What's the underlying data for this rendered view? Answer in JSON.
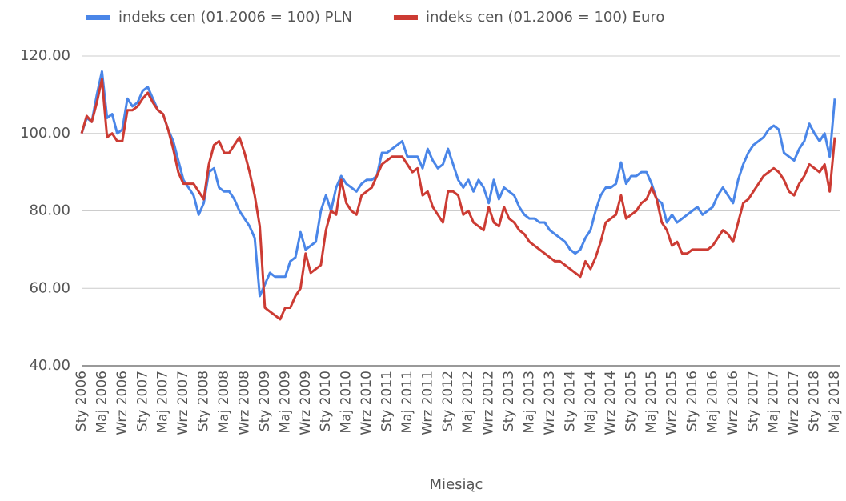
{
  "chart_data": {
    "type": "line",
    "x_label": "Miesiąc",
    "categories": [
      "Sty 2006",
      null,
      null,
      null,
      "Maj 2006",
      null,
      null,
      null,
      "Wrz 2006",
      null,
      null,
      null,
      "Sty 2007",
      null,
      null,
      null,
      "Maj 2007",
      null,
      null,
      null,
      "Wrz 2007",
      null,
      null,
      null,
      "Sty 2008",
      null,
      null,
      null,
      "Maj 2008",
      null,
      null,
      null,
      "Wrz 2008",
      null,
      null,
      null,
      "Sty 2009",
      null,
      null,
      null,
      "Maj 2009",
      null,
      null,
      null,
      "Wrz 2009",
      null,
      null,
      null,
      "Sty 2010",
      null,
      null,
      null,
      "Maj 2010",
      null,
      null,
      null,
      "Wrz 2010",
      null,
      null,
      null,
      "Sty 2011",
      null,
      null,
      null,
      "Maj 2011",
      null,
      null,
      null,
      "Wrz 2011",
      null,
      null,
      null,
      "Sty 2012",
      null,
      null,
      null,
      "Maj 2012",
      null,
      null,
      null,
      "Wrz 2012",
      null,
      null,
      null,
      "Sty 2013",
      null,
      null,
      null,
      "Maj 2013",
      null,
      null,
      null,
      "Wrz 2013",
      null,
      null,
      null,
      "Sty 2014",
      null,
      null,
      null,
      "Maj 2014",
      null,
      null,
      null,
      "Wrz 2014",
      null,
      null,
      null,
      "Sty 2015",
      null,
      null,
      null,
      "Maj 2015",
      null,
      null,
      null,
      "Wrz 2015",
      null,
      null,
      null,
      "Sty 2016",
      null,
      null,
      null,
      "Maj 2016",
      null,
      null,
      null,
      "Wrz 2016",
      null,
      null,
      null,
      "Sty 2017",
      null,
      null,
      null,
      "Maj 2017",
      null,
      null,
      null,
      "Wrz 2017",
      null,
      null,
      null,
      "Sty 2018",
      null,
      null,
      null,
      "Maj 2018"
    ],
    "series": [
      {
        "name": "indeks cen (01.2006 = 100) PLN",
        "color": "#4a86e8",
        "values": [
          100,
          104,
          103,
          110,
          116,
          104,
          105,
          100,
          101,
          109,
          107,
          108,
          111,
          112,
          109,
          106,
          105,
          101,
          98,
          93,
          88,
          86,
          84,
          79,
          82,
          90,
          91,
          86,
          85,
          85,
          83,
          80,
          78,
          76,
          73,
          58,
          61,
          64,
          63,
          63,
          63,
          67,
          68,
          74.5,
          70,
          71,
          72,
          80,
          84,
          80,
          86,
          89,
          87,
          86,
          85,
          87,
          88,
          88,
          89,
          95,
          95,
          96,
          97,
          98,
          94,
          94,
          94,
          91,
          96,
          93,
          91,
          92,
          96,
          92,
          88,
          86,
          88,
          85,
          88,
          86,
          82,
          88,
          83,
          86,
          85,
          84,
          81,
          79,
          78,
          78,
          77,
          77,
          75,
          74,
          73,
          72,
          70,
          69,
          70,
          73,
          75,
          80,
          84,
          86,
          86,
          87,
          92.5,
          87,
          89,
          89,
          90,
          90,
          87,
          83,
          82,
          77,
          79,
          77,
          78,
          79,
          80,
          81,
          79,
          80,
          81,
          84,
          86,
          84,
          82,
          88,
          92,
          95,
          97,
          98,
          99,
          101,
          102,
          101,
          95,
          94,
          93,
          96,
          98,
          102.5,
          100,
          98,
          100,
          94,
          109
        ]
      },
      {
        "name": "indeks cen (01.2006 = 100) Euro",
        "color": "#cc3b33",
        "values": [
          100,
          104.5,
          103,
          108,
          114,
          99,
          100,
          98,
          98,
          106,
          106,
          107,
          109,
          110.5,
          108,
          106,
          105,
          101,
          96,
          90,
          87,
          87,
          87,
          85,
          83,
          92,
          97,
          98,
          95,
          95,
          97,
          99,
          95,
          90,
          84,
          76,
          55,
          54,
          53,
          52,
          55,
          55,
          58,
          60,
          69,
          64,
          65,
          66,
          75,
          80,
          79,
          88,
          82,
          80,
          79,
          84,
          85,
          86,
          89,
          92,
          93,
          94,
          94,
          94,
          92,
          90,
          91,
          84,
          85,
          81,
          79,
          77,
          85,
          85,
          84,
          79,
          80,
          77,
          76,
          75,
          81,
          77,
          76,
          81,
          78,
          77,
          75,
          74,
          72,
          71,
          70,
          69,
          68,
          67,
          67,
          66,
          65,
          64,
          63,
          67,
          65,
          68,
          72,
          77,
          78,
          79,
          84,
          78,
          79,
          80,
          82,
          83,
          86,
          83,
          77,
          75,
          71,
          72,
          69,
          69,
          70,
          70,
          70,
          70,
          71,
          73,
          75,
          74,
          72,
          77,
          82,
          83,
          85,
          87,
          89,
          90,
          91,
          90,
          88,
          85,
          84,
          87,
          89,
          92,
          91,
          90,
          92,
          85,
          99
        ]
      }
    ],
    "ylim": [
      40,
      120
    ],
    "yticks": [
      {
        "value": 40,
        "label": "40.00"
      },
      {
        "value": 60,
        "label": "60.00"
      },
      {
        "value": 80,
        "label": "80.00"
      },
      {
        "value": 100,
        "label": "100.00"
      },
      {
        "value": 120,
        "label": "120.00"
      }
    ],
    "grid": true,
    "legend": "top"
  }
}
